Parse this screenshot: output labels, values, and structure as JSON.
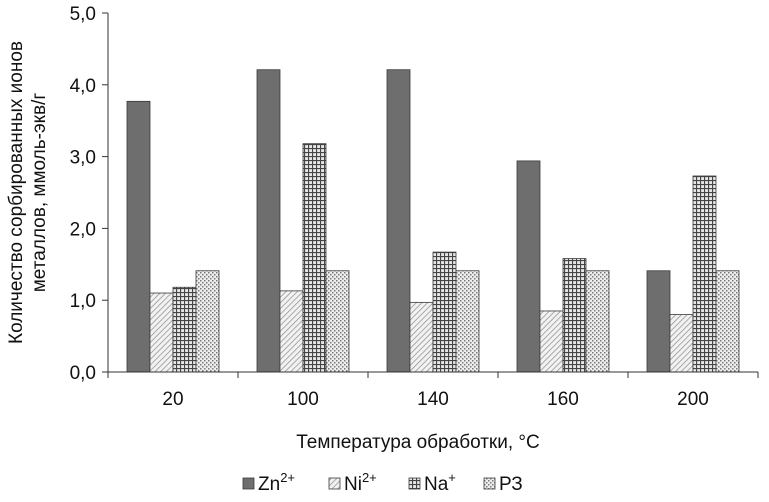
{
  "chart_data": {
    "type": "bar",
    "categories": [
      "20",
      "100",
      "140",
      "160",
      "200"
    ],
    "series": [
      {
        "name": "Zn",
        "sup": "2+",
        "pattern": "solid",
        "values": [
          3.77,
          4.21,
          4.21,
          2.94,
          1.41
        ]
      },
      {
        "name": "Ni",
        "sup": "2+",
        "pattern": "diag-fine",
        "values": [
          1.1,
          1.13,
          0.97,
          0.85,
          0.8
        ]
      },
      {
        "name": "Na",
        "sup": "+",
        "pattern": "grid",
        "values": [
          1.18,
          3.18,
          1.67,
          1.58,
          2.73
        ]
      },
      {
        "name": "РЗ",
        "sup": "",
        "pattern": "dots",
        "values": [
          1.41,
          1.41,
          1.41,
          1.41,
          1.41
        ]
      }
    ],
    "yticks": [
      "0,0",
      "1,0",
      "2,0",
      "3,0",
      "4,0",
      "5,0"
    ],
    "ylim": [
      0,
      5
    ],
    "xlabel": "Температура обработки, °С",
    "ylabel_line1": "Количество сорбированных ионов",
    "ylabel_line2": "металлов, ммоль-экв/г",
    "legend_position": "bottom",
    "grid": false,
    "colors": {
      "solid": "#6e6e6e",
      "hatch": "#555555",
      "axis": "#333333"
    }
  }
}
